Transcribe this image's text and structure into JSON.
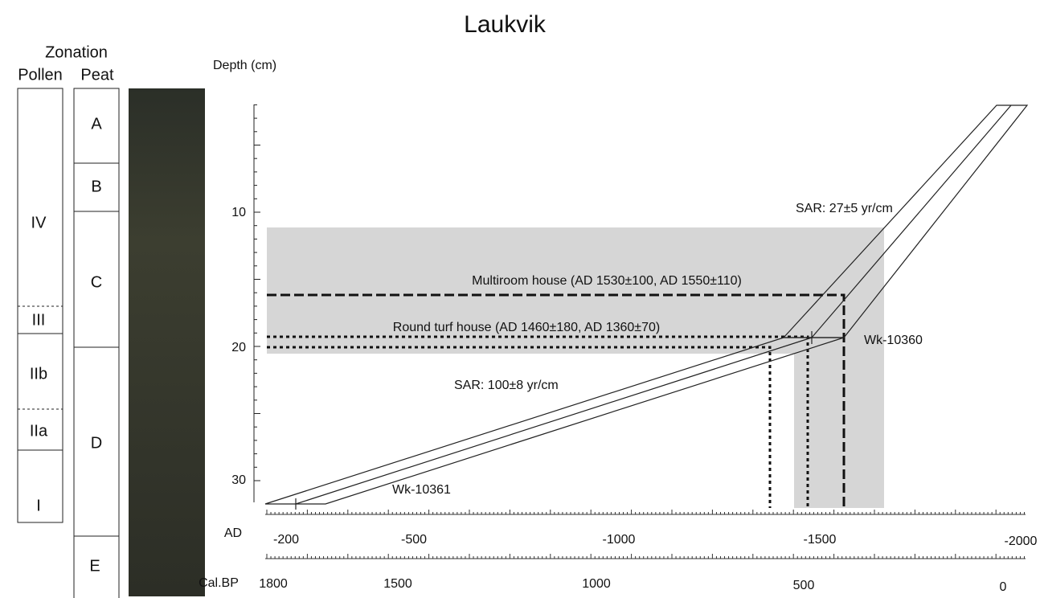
{
  "title": "Laukvik",
  "zonation": {
    "heading": "Zonation",
    "pollen_label": "Pollen",
    "peat_label": "Peat",
    "pollen_zones": [
      "IV",
      "III",
      "IIb",
      "IIa",
      "I"
    ],
    "peat_zones": [
      "A",
      "B",
      "C",
      "D",
      "E"
    ]
  },
  "depth_axis": {
    "label": "Depth (cm)",
    "ticks": [
      "10",
      "20",
      "30"
    ]
  },
  "ad_axis": {
    "label": "AD",
    "ticks": [
      "-200",
      "-500",
      "-1000",
      "-1500",
      "-2000"
    ]
  },
  "calbp_axis": {
    "label": "Cal.BP",
    "ticks": [
      "1800",
      "1500",
      "1000",
      "500",
      "0"
    ]
  },
  "annotations": {
    "sar_upper": "SAR: 27±5 yr/cm",
    "multiroom": "Multiroom house (AD 1530±100, AD 1550±110)",
    "round_turf": "Round turf house (AD 1460±180, AD 1360±70)",
    "wk_upper": "Wk-10360",
    "sar_lower": "SAR: 100±8 yr/cm",
    "wk_lower": "Wk-10361"
  }
}
